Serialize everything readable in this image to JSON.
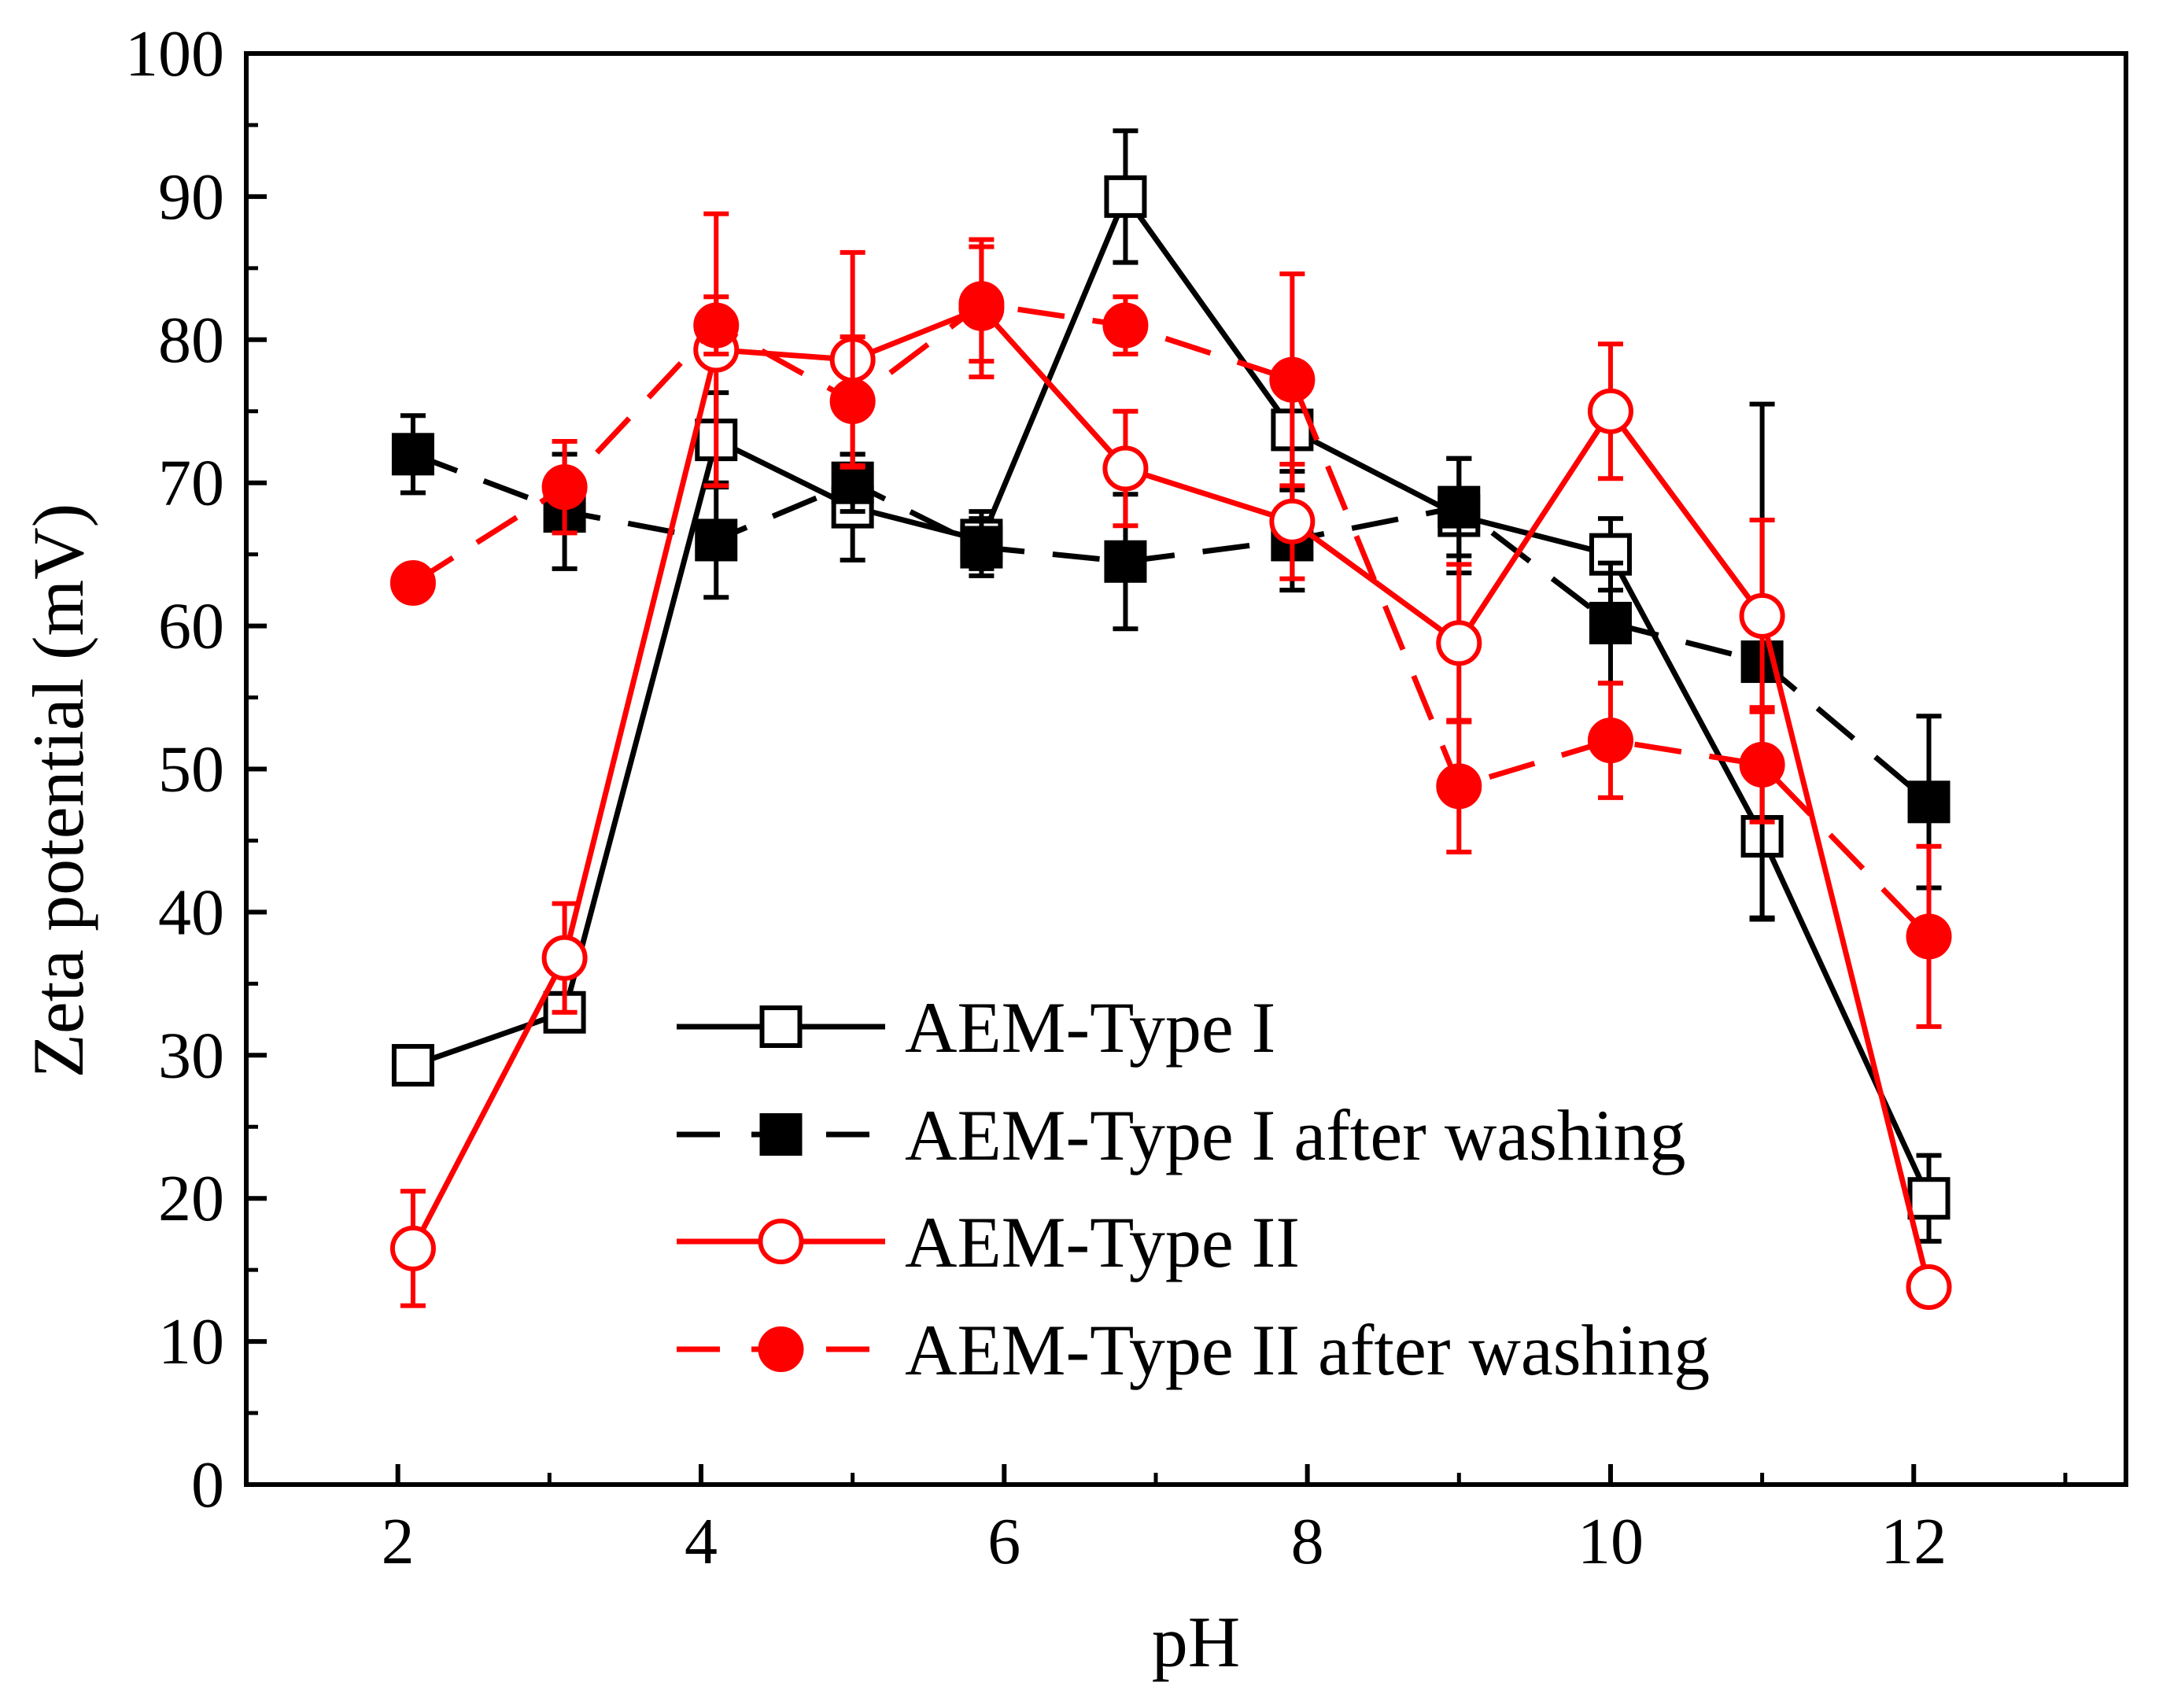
{
  "chart_data": {
    "type": "line",
    "title": "",
    "xlabel": "pH",
    "ylabel": "Zeta potential (mV)",
    "xlim": [
      1.0,
      13.4
    ],
    "ylim": [
      0,
      100
    ],
    "x_ticks": [
      2,
      4,
      6,
      8,
      10,
      12
    ],
    "x_tick_labels": [
      "2",
      "4",
      "6",
      "8",
      "10",
      "12"
    ],
    "y_ticks": [
      0,
      10,
      20,
      30,
      40,
      50,
      60,
      70,
      80,
      90,
      100
    ],
    "y_tick_labels": [
      "0",
      "10",
      "20",
      "30",
      "40",
      "50",
      "60",
      "70",
      "80",
      "90",
      "100"
    ],
    "legend_position": "bottom-center",
    "grid": false,
    "series": [
      {
        "name": "AEM-Type I",
        "color": "#000000",
        "line_style": "solid",
        "marker": "square",
        "marker_fill": "open",
        "x": [
          2.1,
          3.1,
          4.1,
          5.0,
          5.85,
          6.8,
          7.9,
          9.0,
          10.0,
          11.0,
          12.1
        ],
        "y": [
          29.3,
          33.0,
          73.0,
          68.3,
          66.0,
          90.0,
          73.7,
          67.7,
          65.0,
          45.3,
          20.0
        ],
        "err": [
          1.0,
          1.0,
          3.3,
          3.7,
          2.0,
          4.6,
          2.9,
          4.0,
          2.5,
          5.7,
          3.0
        ]
      },
      {
        "name": "AEM-Type I after washing",
        "color": "#000000",
        "line_style": "dashed",
        "marker": "square",
        "marker_fill": "filled",
        "x": [
          2.1,
          3.1,
          4.1,
          5.0,
          5.85,
          6.8,
          7.9,
          9.0,
          10.0,
          11.0,
          12.1
        ],
        "y": [
          72.0,
          68.0,
          66.0,
          70.0,
          65.5,
          64.5,
          66.0,
          68.3,
          60.2,
          57.5,
          47.7
        ],
        "err": [
          2.7,
          4.0,
          4.0,
          2.0,
          2.0,
          4.7,
          3.5,
          3.4,
          4.2,
          18.0,
          6.0
        ]
      },
      {
        "name": "AEM-Type II",
        "color": "#ff0000",
        "line_style": "solid",
        "marker": "circle",
        "marker_fill": "open",
        "x": [
          2.1,
          3.1,
          4.1,
          5.0,
          5.85,
          6.8,
          7.9,
          9.0,
          10.0,
          11.0,
          12.1
        ],
        "y": [
          16.5,
          36.8,
          79.3,
          78.6,
          82.2,
          71.0,
          67.3,
          58.8,
          75.0,
          60.7,
          13.8
        ],
        "err": [
          4.0,
          3.8,
          9.5,
          7.5,
          4.8,
          4.0,
          4.0,
          5.5,
          4.7,
          6.7,
          1.0
        ]
      },
      {
        "name": "AEM-Type II after washing",
        "color": "#ff0000",
        "line_style": "dashed",
        "marker": "circle",
        "marker_fill": "filled",
        "x": [
          2.1,
          3.1,
          4.1,
          5.0,
          5.85,
          6.8,
          7.9,
          9.0,
          10.0,
          11.0,
          12.1
        ],
        "y": [
          63.0,
          69.7,
          81.0,
          75.7,
          82.5,
          81.0,
          77.2,
          48.8,
          52.0,
          50.3,
          38.3
        ],
        "err": [
          0.5,
          3.2,
          2.0,
          4.5,
          4.0,
          2.0,
          7.4,
          4.6,
          4.0,
          4.0,
          6.3
        ]
      }
    ]
  }
}
